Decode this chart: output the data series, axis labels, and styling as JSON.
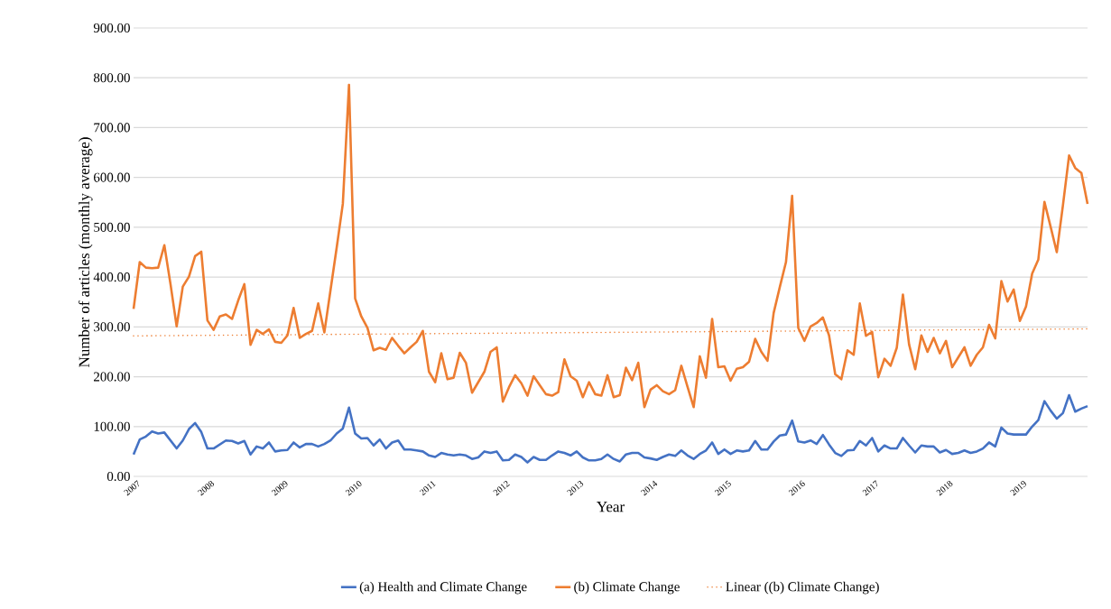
{
  "chart_data": {
    "type": "line",
    "xlabel": "Year",
    "ylabel": "Number of articles (monthly average)",
    "categories": [
      "2007",
      null,
      null,
      null,
      null,
      null,
      null,
      null,
      null,
      null,
      null,
      null,
      "2008",
      null,
      null,
      null,
      null,
      null,
      null,
      null,
      null,
      null,
      null,
      null,
      "2009",
      null,
      null,
      null,
      null,
      null,
      null,
      null,
      null,
      null,
      null,
      null,
      "2010",
      null,
      null,
      null,
      null,
      null,
      null,
      null,
      null,
      null,
      null,
      null,
      "2011",
      null,
      null,
      null,
      null,
      null,
      null,
      null,
      null,
      null,
      null,
      null,
      "2012",
      null,
      null,
      null,
      null,
      null,
      null,
      null,
      null,
      null,
      null,
      null,
      "2013",
      null,
      null,
      null,
      null,
      null,
      null,
      null,
      null,
      null,
      null,
      null,
      "2014",
      null,
      null,
      null,
      null,
      null,
      null,
      null,
      null,
      null,
      null,
      null,
      "2015",
      null,
      null,
      null,
      null,
      null,
      null,
      null,
      null,
      null,
      null,
      null,
      "2016",
      null,
      null,
      null,
      null,
      null,
      null,
      null,
      null,
      null,
      null,
      null,
      "2017",
      null,
      null,
      null,
      null,
      null,
      null,
      null,
      null,
      null,
      null,
      null,
      "2018",
      null,
      null,
      null,
      null,
      null,
      null,
      null,
      null,
      null,
      null,
      null,
      "2019",
      null,
      null,
      null,
      null,
      null,
      null,
      null,
      null,
      null,
      null,
      null
    ],
    "series": [
      {
        "name": "(a) Health and Climate Change",
        "color": "#4472c4",
        "values": [
          44,
          74,
          80,
          90,
          86,
          88,
          72,
          56,
          72,
          95,
          107,
          89,
          56,
          56,
          64,
          72,
          71,
          66,
          71,
          44,
          60,
          56,
          68,
          50,
          52,
          53,
          68,
          58,
          65,
          65,
          60,
          65,
          72,
          86,
          96,
          138,
          86,
          76,
          77,
          62,
          74,
          56,
          68,
          72,
          54,
          54,
          52,
          50,
          42,
          39,
          47,
          44,
          42,
          44,
          42,
          35,
          38,
          50,
          47,
          50,
          32,
          33,
          44,
          39,
          28,
          39,
          33,
          33,
          42,
          50,
          47,
          42,
          50,
          38,
          32,
          32,
          35,
          44,
          35,
          30,
          44,
          47,
          47,
          38,
          36,
          33,
          39,
          44,
          41,
          52,
          42,
          35,
          45,
          52,
          68,
          45,
          54,
          45,
          52,
          50,
          52,
          71,
          54,
          54,
          70,
          82,
          84,
          112,
          70,
          68,
          72,
          65,
          83,
          64,
          47,
          41,
          52,
          53,
          71,
          62,
          77,
          50,
          62,
          56,
          56,
          77,
          62,
          48,
          62,
          60,
          60,
          48,
          53,
          45,
          47,
          52,
          47,
          50,
          56,
          68,
          60,
          98,
          86,
          84,
          84,
          84,
          100,
          113,
          151,
          132,
          116,
          127,
          163,
          130,
          136,
          141
        ]
      },
      {
        "name": "(b) Climate Change",
        "color": "#ed7d31",
        "values": [
          336,
          430,
          419,
          418,
          419,
          464,
          386,
          301,
          381,
          401,
          442,
          451,
          313,
          294,
          321,
          325,
          316,
          353,
          386,
          264,
          294,
          286,
          295,
          270,
          268,
          283,
          338,
          278,
          286,
          292,
          347,
          289,
          374,
          459,
          547,
          786,
          357,
          321,
          298,
          253,
          258,
          254,
          278,
          262,
          247,
          259,
          270,
          292,
          210,
          189,
          247,
          195,
          198,
          248,
          228,
          168,
          189,
          210,
          250,
          259,
          150,
          179,
          203,
          187,
          162,
          201,
          183,
          165,
          162,
          169,
          235,
          201,
          192,
          159,
          189,
          165,
          162,
          203,
          159,
          163,
          218,
          193,
          228,
          139,
          174,
          183,
          171,
          165,
          173,
          222,
          180,
          139,
          241,
          198,
          316,
          219,
          221,
          192,
          216,
          219,
          230,
          276,
          250,
          232,
          328,
          380,
          430,
          563,
          298,
          272,
          301,
          308,
          319,
          283,
          205,
          195,
          253,
          244,
          347,
          282,
          290,
          199,
          236,
          222,
          258,
          365,
          265,
          215,
          283,
          250,
          278,
          247,
          272,
          219,
          239,
          259,
          222,
          244,
          259,
          304,
          277,
          392,
          351,
          375,
          312,
          341,
          407,
          435,
          551,
          501,
          450,
          544,
          644,
          619,
          609,
          547
        ]
      },
      {
        "name": "Linear ((b) Climate Change)",
        "color": "#ed7d31",
        "line_style": "dotted",
        "values": [
          282,
          null,
          null,
          null,
          null,
          null,
          null,
          null,
          null,
          null,
          null,
          null,
          null,
          null,
          null,
          null,
          null,
          null,
          null,
          null,
          null,
          null,
          null,
          null,
          null,
          null,
          null,
          null,
          null,
          null,
          null,
          null,
          null,
          null,
          null,
          null,
          null,
          null,
          null,
          null,
          null,
          null,
          null,
          null,
          null,
          null,
          null,
          null,
          null,
          null,
          null,
          null,
          null,
          null,
          null,
          null,
          null,
          null,
          null,
          null,
          null,
          null,
          null,
          null,
          null,
          null,
          null,
          null,
          null,
          null,
          null,
          null,
          null,
          null,
          null,
          null,
          null,
          null,
          null,
          null,
          null,
          null,
          null,
          null,
          null,
          null,
          null,
          null,
          null,
          null,
          null,
          null,
          null,
          null,
          null,
          null,
          null,
          null,
          null,
          null,
          null,
          null,
          null,
          null,
          null,
          null,
          null,
          null,
          null,
          null,
          null,
          null,
          null,
          null,
          null,
          null,
          null,
          null,
          null,
          null,
          null,
          null,
          null,
          null,
          null,
          null,
          null,
          null,
          null,
          null,
          null,
          null,
          null,
          null,
          null,
          null,
          null,
          null,
          null,
          null,
          null,
          null,
          null,
          null,
          null,
          null,
          null,
          null,
          null,
          null,
          null,
          null,
          null,
          null,
          null,
          296
        ]
      }
    ],
    "ylim": [
      0,
      900
    ],
    "yticks": [
      {
        "value": 0,
        "label": "0.00"
      },
      {
        "value": 100,
        "label": "100.00"
      },
      {
        "value": 200,
        "label": "200.00"
      },
      {
        "value": 300,
        "label": "300.00"
      },
      {
        "value": 400,
        "label": "400.00"
      },
      {
        "value": 500,
        "label": "500.00"
      },
      {
        "value": 600,
        "label": "600.00"
      },
      {
        "value": 700,
        "label": "700.00"
      },
      {
        "value": 800,
        "label": "800.00"
      },
      {
        "value": 900,
        "label": "900.00"
      }
    ],
    "grid": "y",
    "legend": "bottom"
  }
}
